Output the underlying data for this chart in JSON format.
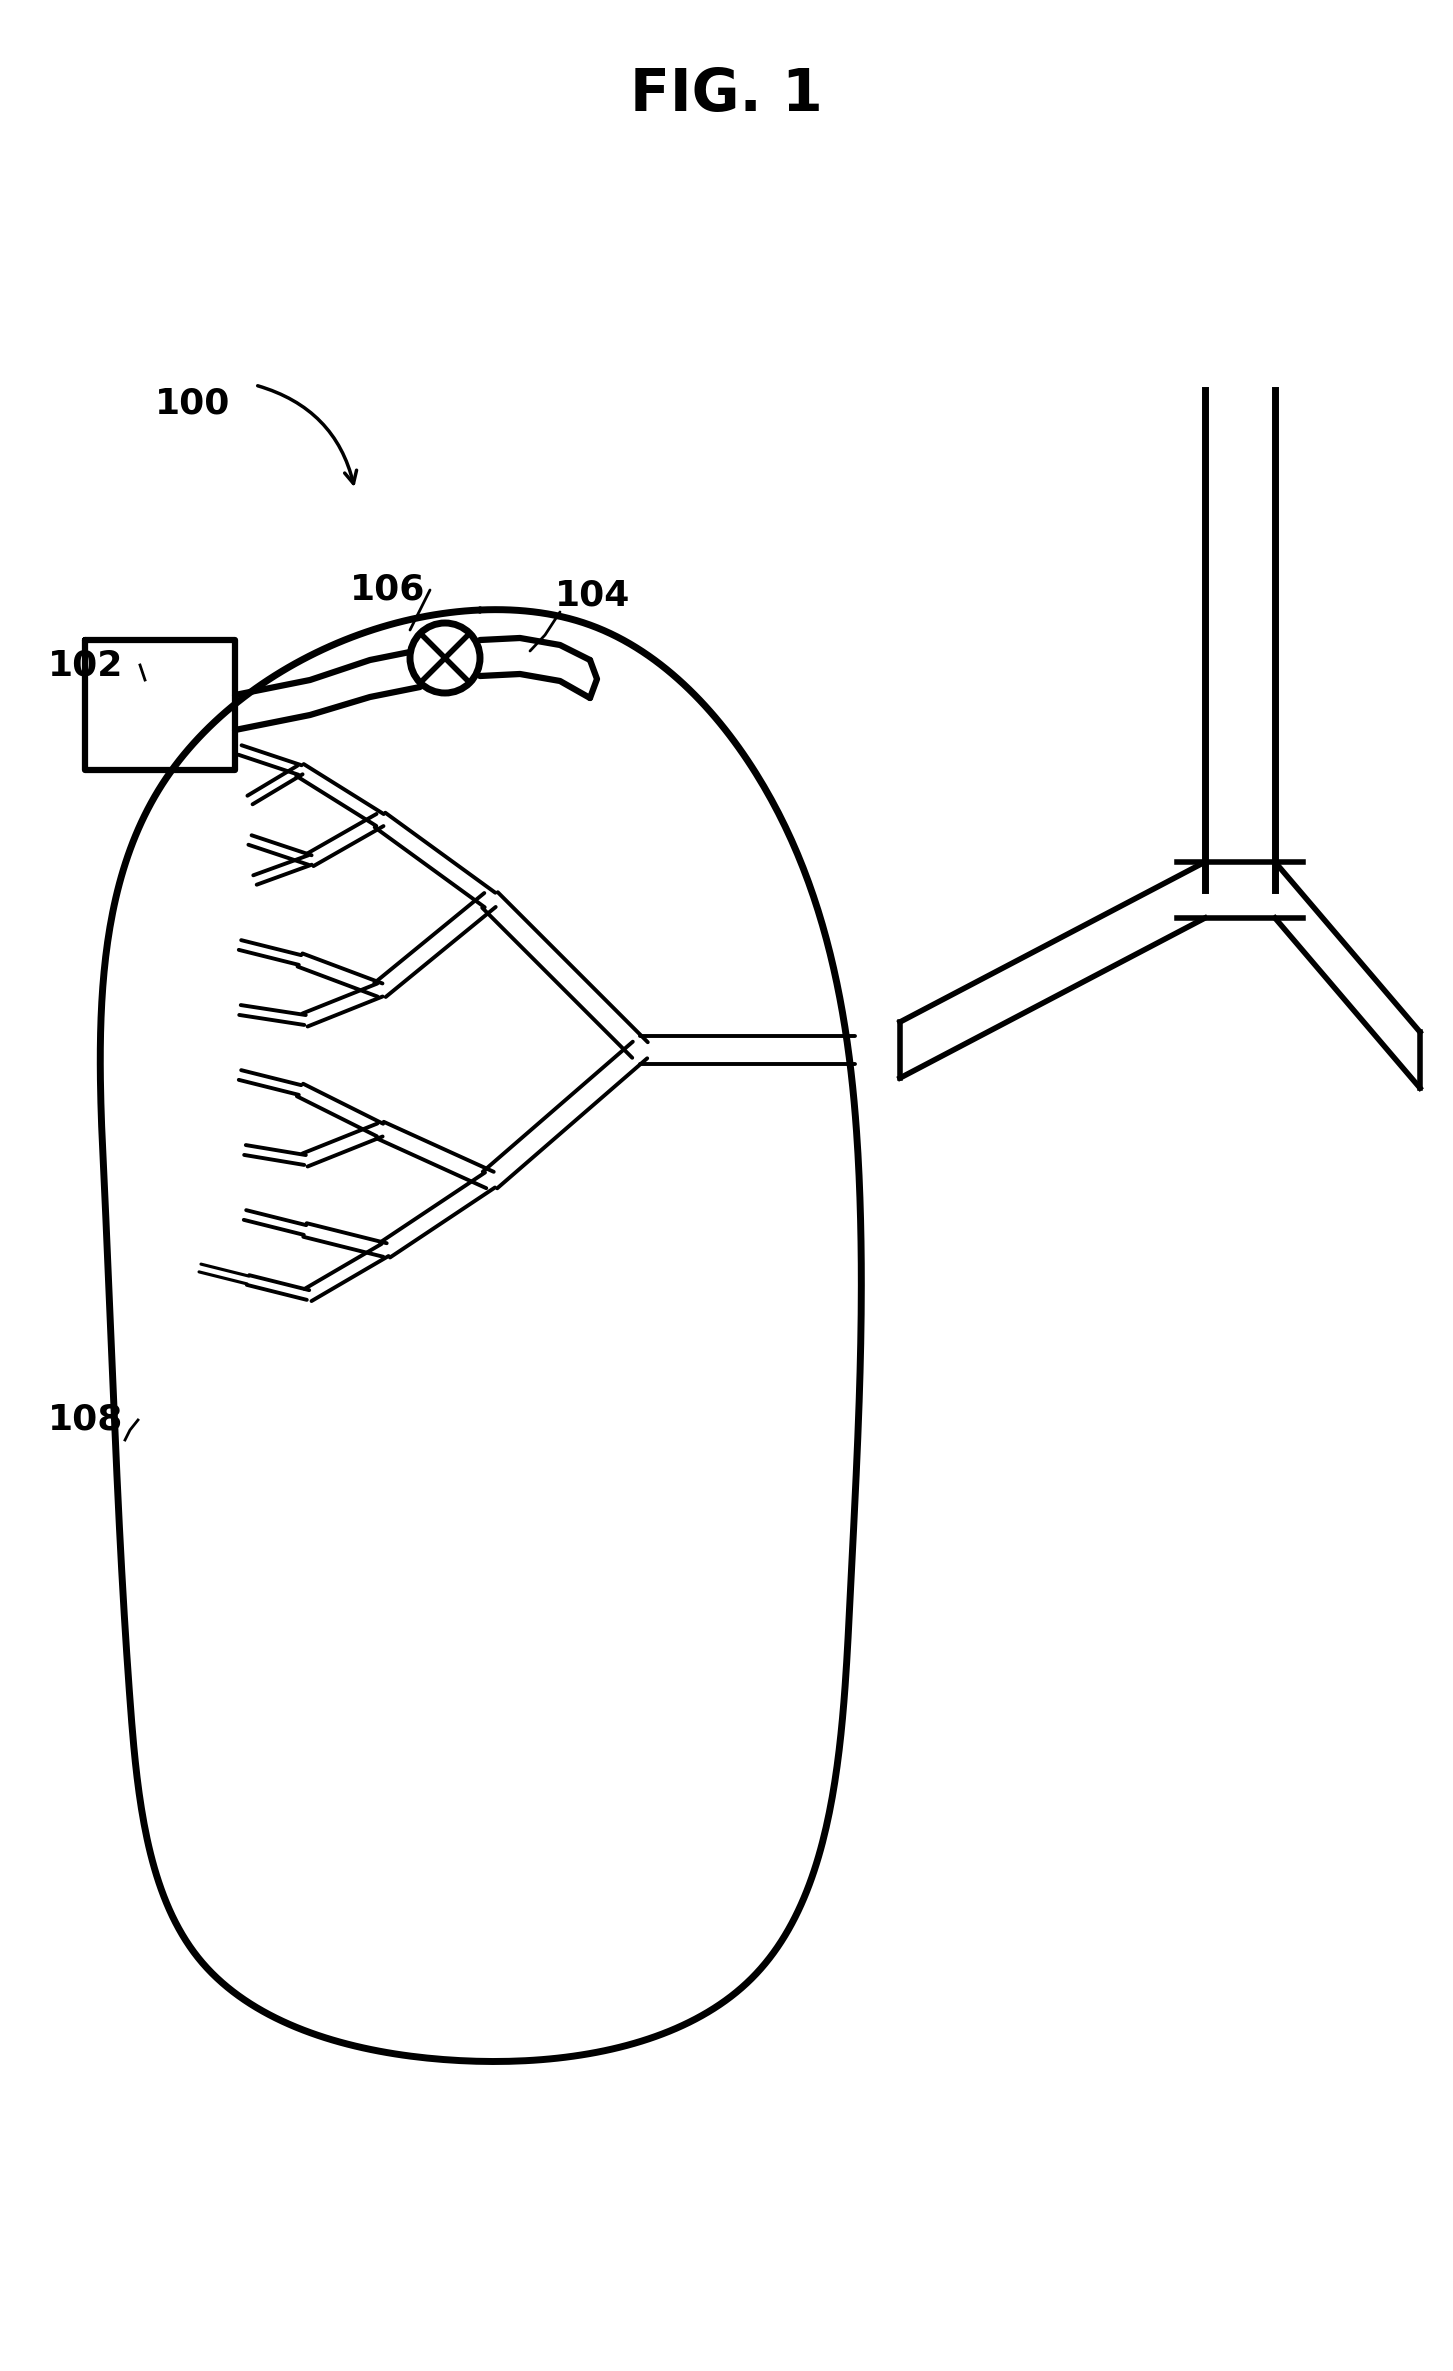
{
  "title": "FIG. 1",
  "title_fontsize": 42,
  "title_fontweight": "bold",
  "bg_color": "#ffffff",
  "line_color": "#000000",
  "lw_main": 4.0,
  "lw_tube": 3.5,
  "lw_thin": 2.5,
  "fig_width": 14.53,
  "fig_height": 23.71,
  "dpi": 100
}
